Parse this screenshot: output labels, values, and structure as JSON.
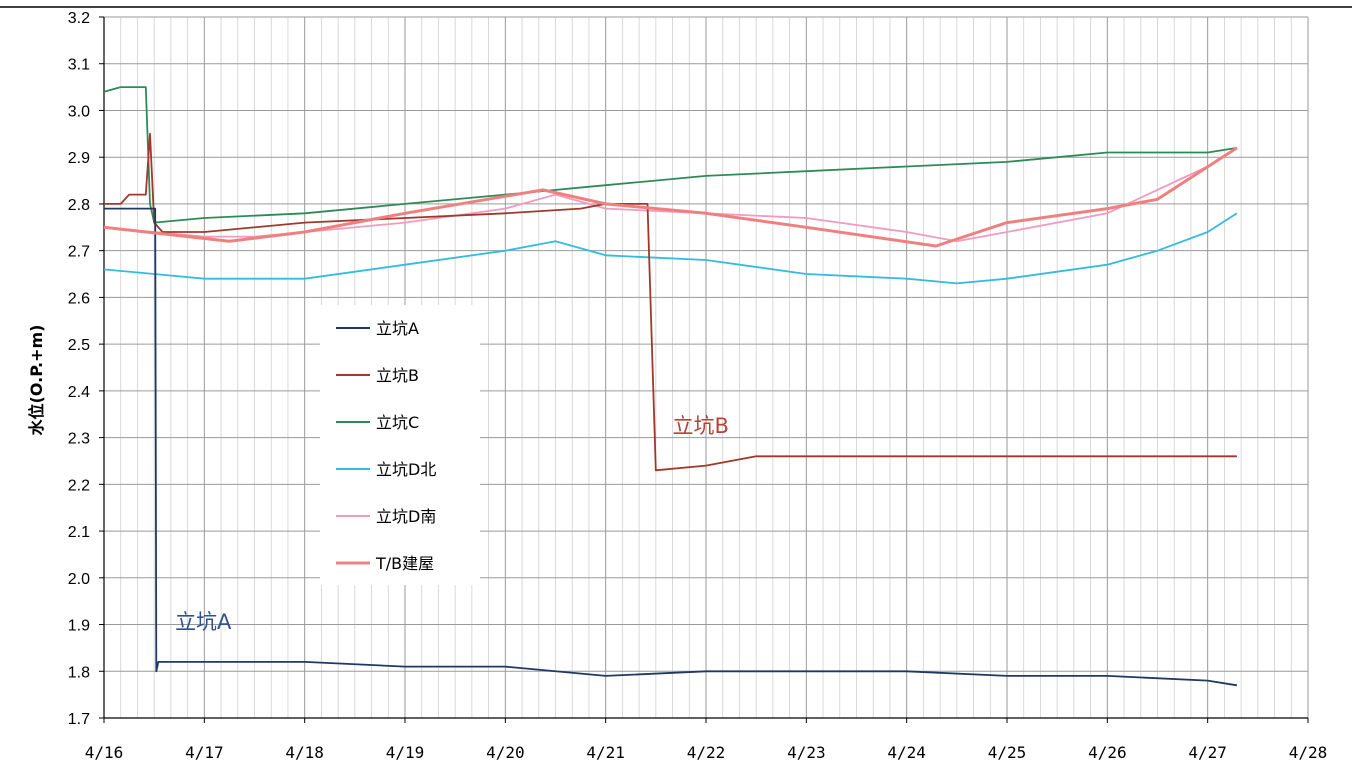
{
  "chart_data": {
    "type": "line",
    "title": "",
    "xlabel": "",
    "ylabel": "水位(O.P.+m)",
    "ylim": [
      1.7,
      3.2
    ],
    "xlim": [
      "4/16",
      "4/28"
    ],
    "y_ticks": [
      "1.7",
      "1.8",
      "1.9",
      "2.0",
      "2.1",
      "2.2",
      "2.3",
      "2.4",
      "2.5",
      "2.6",
      "2.7",
      "2.8",
      "2.9",
      "3.0",
      "3.1",
      "3.2"
    ],
    "x_ticks": [
      "4/16",
      "4/17",
      "4/18",
      "4/19",
      "4/20",
      "4/21",
      "4/22",
      "4/23",
      "4/24",
      "4/25",
      "4/26",
      "4/27",
      "4/28"
    ],
    "grid": true,
    "legend_position": "center-left",
    "series": [
      {
        "name": "立坑A",
        "color": "#1f3864",
        "x": [
          "4/16 00:00",
          "4/16 06:00",
          "4/16 12:00",
          "4/16 12:15",
          "4/16 12:30",
          "4/16 13:00",
          "4/17 00:00",
          "4/18 00:00",
          "4/19 00:00",
          "4/20 00:00",
          "4/21 00:00",
          "4/22 00:00",
          "4/23 00:00",
          "4/24 00:00",
          "4/25 00:00",
          "4/26 00:00",
          "4/27 00:00",
          "4/27 07:00"
        ],
        "values": [
          2.79,
          2.79,
          2.79,
          2.79,
          1.8,
          1.82,
          1.82,
          1.82,
          1.81,
          1.81,
          1.79,
          1.8,
          1.8,
          1.8,
          1.79,
          1.79,
          1.78,
          1.77
        ]
      },
      {
        "name": "立坑B",
        "color": "#a0392b",
        "x": [
          "4/16 00:00",
          "4/16 04:00",
          "4/16 06:00",
          "4/16 10:00",
          "4/16 11:00",
          "4/16 12:00",
          "4/16 14:00",
          "4/17 00:00",
          "4/18 00:00",
          "4/19 00:00",
          "4/20 00:00",
          "4/20 18:00",
          "4/21 00:00",
          "4/21 10:00",
          "4/21 12:00",
          "4/22 00:00",
          "4/22 12:00",
          "4/23 00:00",
          "4/24 00:00",
          "4/25 00:00",
          "4/26 00:00",
          "4/27 07:00"
        ],
        "values": [
          2.8,
          2.8,
          2.82,
          2.82,
          2.95,
          2.76,
          2.74,
          2.74,
          2.76,
          2.77,
          2.78,
          2.79,
          2.8,
          2.8,
          2.23,
          2.24,
          2.26,
          2.26,
          2.26,
          2.26,
          2.26,
          2.26
        ]
      },
      {
        "name": "立坑C",
        "color": "#2e8b57",
        "x": [
          "4/16 00:00",
          "4/16 04:00",
          "4/16 10:00",
          "4/16 11:00",
          "4/16 12:00",
          "4/17 00:00",
          "4/18 00:00",
          "4/19 00:00",
          "4/20 00:00",
          "4/21 00:00",
          "4/22 00:00",
          "4/23 00:00",
          "4/24 00:00",
          "4/25 00:00",
          "4/25 12:00",
          "4/26 00:00",
          "4/27 00:00",
          "4/27 07:00"
        ],
        "values": [
          3.04,
          3.05,
          3.05,
          2.8,
          2.76,
          2.77,
          2.78,
          2.8,
          2.82,
          2.84,
          2.86,
          2.87,
          2.88,
          2.89,
          2.9,
          2.91,
          2.91,
          2.92
        ]
      },
      {
        "name": "立坑D北",
        "color": "#33bbe0",
        "x": [
          "4/16 00:00",
          "4/16 12:00",
          "4/17 00:00",
          "4/17 12:00",
          "4/18 00:00",
          "4/19 00:00",
          "4/20 00:00",
          "4/20 12:00",
          "4/21 00:00",
          "4/22 00:00",
          "4/23 00:00",
          "4/24 00:00",
          "4/24 12:00",
          "4/25 00:00",
          "4/26 00:00",
          "4/26 12:00",
          "4/27 00:00",
          "4/27 07:00"
        ],
        "values": [
          2.66,
          2.65,
          2.64,
          2.64,
          2.64,
          2.67,
          2.7,
          2.72,
          2.69,
          2.68,
          2.65,
          2.64,
          2.63,
          2.64,
          2.67,
          2.7,
          2.74,
          2.78
        ]
      },
      {
        "name": "立坑D南",
        "color": "#f29ac0",
        "x": [
          "4/16 00:00",
          "4/16 12:00",
          "4/17 00:00",
          "4/17 12:00",
          "4/18 00:00",
          "4/19 00:00",
          "4/20 00:00",
          "4/20 12:00",
          "4/21 00:00",
          "4/22 00:00",
          "4/23 00:00",
          "4/24 00:00",
          "4/24 12:00",
          "4/25 00:00",
          "4/26 00:00",
          "4/27 00:00",
          "4/27 07:00"
        ],
        "values": [
          2.75,
          2.74,
          2.73,
          2.73,
          2.74,
          2.76,
          2.79,
          2.82,
          2.79,
          2.78,
          2.77,
          2.74,
          2.72,
          2.74,
          2.78,
          2.88,
          2.92
        ]
      },
      {
        "name": "T/B建屋",
        "color": "#f08080",
        "x": [
          "4/16 00:00",
          "4/17 06:00",
          "4/18 00:00",
          "4/19 00:00",
          "4/20 09:00",
          "4/21 00:00",
          "4/22 00:00",
          "4/23 00:00",
          "4/24 07:00",
          "4/25 00:00",
          "4/26 00:00",
          "4/26 12:00",
          "4/27 07:00"
        ],
        "values": [
          2.75,
          2.72,
          2.74,
          2.78,
          2.83,
          2.8,
          2.78,
          2.75,
          2.71,
          2.76,
          2.79,
          2.81,
          2.92
        ]
      }
    ],
    "annotations": [
      {
        "text": "立坑A",
        "x": "4/16 17:00",
        "y": 1.89,
        "color": "#2f4f8f"
      },
      {
        "text": "立坑B",
        "x": "4/21 16:00",
        "y": 2.31,
        "color": "#b5433a"
      }
    ]
  }
}
